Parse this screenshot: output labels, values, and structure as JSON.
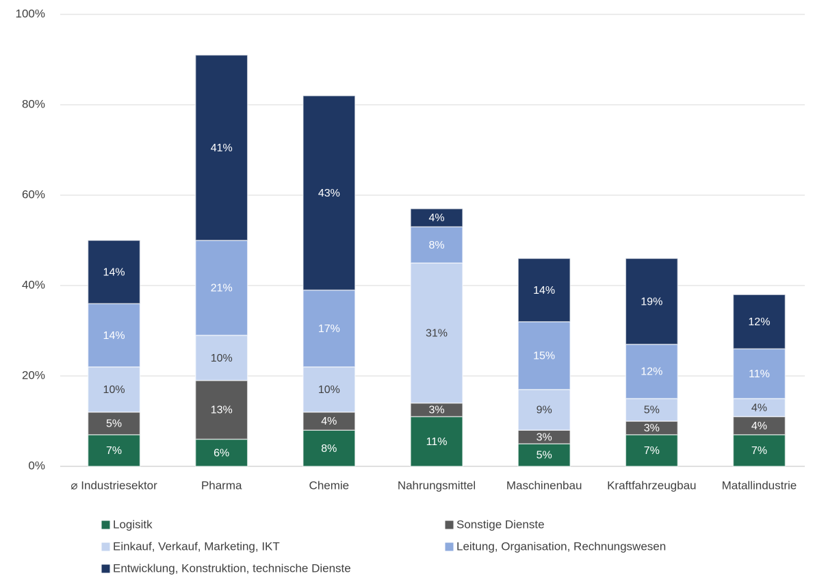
{
  "chart_data": {
    "type": "stacked_bar",
    "categories": [
      "⌀ Industriesektor",
      "Pharma",
      "Chemie",
      "Nahrungsmittel",
      "Maschinenbau",
      "Kraftfahrzeugbau",
      "Matallindustrie"
    ],
    "series": [
      {
        "name": "Logisitk",
        "color": "#1f6e50",
        "values": [
          7,
          6,
          8,
          11,
          5,
          7,
          7
        ],
        "value_labels": [
          "7%",
          "6%",
          "8%",
          "11%",
          "5%",
          "7%",
          "7%"
        ]
      },
      {
        "name": "Sonstige Dienste",
        "color": "#5a5a5a",
        "values": [
          5,
          13,
          4,
          3,
          3,
          3,
          4
        ],
        "value_labels": [
          "5%",
          "13%",
          "4%",
          "3%",
          "3%",
          "3%",
          "4%"
        ]
      },
      {
        "name": "Einkauf, Verkauf, Marketing, IKT",
        "color": "#c3d3ef",
        "values": [
          10,
          10,
          10,
          31,
          9,
          5,
          4
        ],
        "value_labels": [
          "10%",
          "10%",
          "10%",
          "31%",
          "9%",
          "5%",
          "4%"
        ]
      },
      {
        "name": "Leitung, Organisation, Rechnungswesen",
        "color": "#8eaadd",
        "values": [
          14,
          21,
          17,
          8,
          15,
          12,
          11
        ],
        "value_labels": [
          "14%",
          "21%",
          "17%",
          "8%",
          "15%",
          "12%",
          "11%"
        ]
      },
      {
        "name": "Entwicklung, Konstruktion, technische Dienste",
        "color": "#1f3763",
        "values": [
          14,
          41,
          43,
          4,
          14,
          19,
          12
        ],
        "value_labels": [
          "14%",
          "41%",
          "43%",
          "4%",
          "14%",
          "19%",
          "12%"
        ]
      }
    ],
    "ylim": [
      0,
      100
    ],
    "yticks": [
      {
        "value": 0,
        "label": "0%"
      },
      {
        "value": 20,
        "label": "20%"
      },
      {
        "value": 40,
        "label": "40%"
      },
      {
        "value": 60,
        "label": "60%"
      },
      {
        "value": 80,
        "label": "80%"
      },
      {
        "value": 100,
        "label": "100%"
      }
    ],
    "grid": true,
    "legend": "bottom"
  }
}
